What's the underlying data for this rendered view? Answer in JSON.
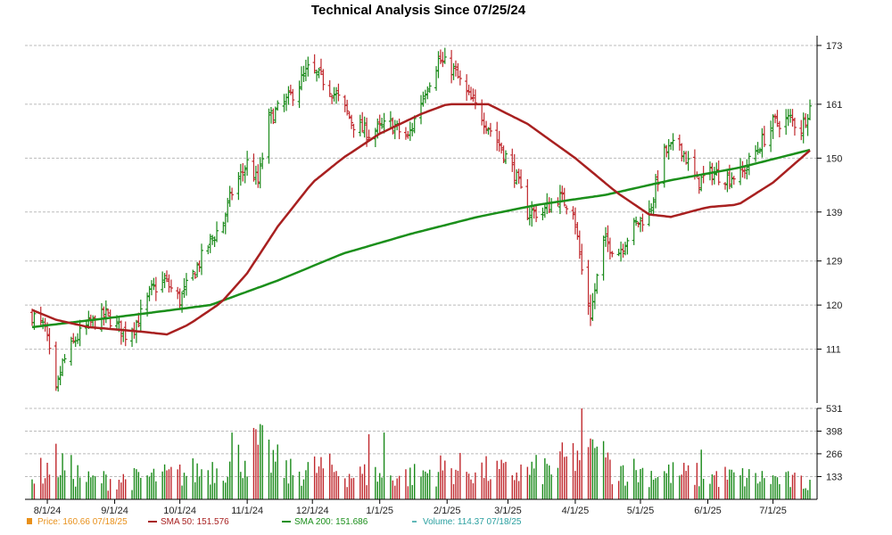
{
  "chart_data": [
    {
      "type": "ohlc",
      "title": "Technical Analysis Since 07/25/24",
      "yticks": [
        111,
        120,
        129,
        139,
        150,
        161,
        173
      ],
      "ylim": [
        100,
        175
      ],
      "grid": true,
      "xticks": [
        {
          "label": "8/1/24",
          "date": "2024-08-01"
        },
        {
          "label": "9/1/24",
          "date": "2024-09-01"
        },
        {
          "label": "10/1/24",
          "date": "2024-10-01"
        },
        {
          "label": "11/1/24",
          "date": "2024-11-01"
        },
        {
          "label": "12/1/24",
          "date": "2024-12-01"
        },
        {
          "label": "1/1/25",
          "date": "2025-01-01"
        },
        {
          "label": "2/1/25",
          "date": "2025-02-01"
        },
        {
          "label": "3/1/25",
          "date": "2025-03-01"
        },
        {
          "label": "4/1/25",
          "date": "2025-04-01"
        },
        {
          "label": "5/1/25",
          "date": "2025-05-01"
        },
        {
          "label": "6/1/25",
          "date": "2025-06-01"
        },
        {
          "label": "7/1/25",
          "date": "2025-07-01"
        }
      ],
      "xrange": [
        "2024-07-25",
        "2025-07-18"
      ],
      "price_keypoints": [
        [
          "2024-07-25",
          118
        ],
        [
          "2024-07-31",
          115
        ],
        [
          "2024-08-05",
          102
        ],
        [
          "2024-08-08",
          108
        ],
        [
          "2024-08-14",
          113
        ],
        [
          "2024-08-20",
          116
        ],
        [
          "2024-08-28",
          118
        ],
        [
          "2024-09-06",
          114
        ],
        [
          "2024-09-12",
          117
        ],
        [
          "2024-09-18",
          123
        ],
        [
          "2024-09-24",
          125
        ],
        [
          "2024-10-01",
          121
        ],
        [
          "2024-10-08",
          127
        ],
        [
          "2024-10-15",
          133
        ],
        [
          "2024-10-21",
          137
        ],
        [
          "2024-10-25",
          143
        ],
        [
          "2024-11-01",
          149
        ],
        [
          "2024-11-06",
          145
        ],
        [
          "2024-11-11",
          158
        ],
        [
          "2024-11-20",
          162
        ],
        [
          "2024-11-29",
          168
        ],
        [
          "2024-12-06",
          166
        ],
        [
          "2024-12-13",
          162
        ],
        [
          "2024-12-20",
          157
        ],
        [
          "2024-12-27",
          155
        ],
        [
          "2025-01-06",
          157
        ],
        [
          "2025-01-14",
          154
        ],
        [
          "2025-01-21",
          163
        ],
        [
          "2025-01-28",
          170
        ],
        [
          "2025-02-04",
          168
        ],
        [
          "2025-02-10",
          163
        ],
        [
          "2025-02-18",
          158
        ],
        [
          "2025-02-26",
          152
        ],
        [
          "2025-03-04",
          147
        ],
        [
          "2025-03-10",
          139
        ],
        [
          "2025-03-17",
          139
        ],
        [
          "2025-03-24",
          142
        ],
        [
          "2025-03-31",
          140
        ],
        [
          "2025-04-04",
          127
        ],
        [
          "2025-04-08",
          118
        ],
        [
          "2025-04-14",
          133
        ],
        [
          "2025-04-21",
          131
        ],
        [
          "2025-04-28",
          136
        ],
        [
          "2025-05-05",
          139
        ],
        [
          "2025-05-12",
          151
        ],
        [
          "2025-05-19",
          153
        ],
        [
          "2025-05-27",
          145
        ],
        [
          "2025-06-03",
          147
        ],
        [
          "2025-06-10",
          146
        ],
        [
          "2025-06-17",
          147
        ],
        [
          "2025-06-24",
          152
        ],
        [
          "2025-07-01",
          157
        ],
        [
          "2025-07-09",
          158
        ],
        [
          "2025-07-14",
          156
        ],
        [
          "2025-07-18",
          160.66
        ]
      ],
      "sma50_keypoints": [
        [
          "2024-07-25",
          119
        ],
        [
          "2024-08-05",
          117
        ],
        [
          "2024-08-20",
          115.5
        ],
        [
          "2024-09-15",
          114.5
        ],
        [
          "2024-09-25",
          114
        ],
        [
          "2024-10-05",
          116
        ],
        [
          "2024-10-20",
          120.5
        ],
        [
          "2024-11-01",
          126.5
        ],
        [
          "2024-11-15",
          136
        ],
        [
          "2024-12-01",
          145
        ],
        [
          "2024-12-15",
          150
        ],
        [
          "2025-01-01",
          155
        ],
        [
          "2025-01-20",
          159
        ],
        [
          "2025-02-01",
          161
        ],
        [
          "2025-02-20",
          161
        ],
        [
          "2025-03-10",
          157
        ],
        [
          "2025-04-01",
          150
        ],
        [
          "2025-04-20",
          143
        ],
        [
          "2025-05-05",
          138.5
        ],
        [
          "2025-05-15",
          138
        ],
        [
          "2025-06-01",
          140
        ],
        [
          "2025-06-15",
          140.5
        ],
        [
          "2025-07-01",
          145
        ],
        [
          "2025-07-18",
          151.576
        ]
      ],
      "sma200_keypoints": [
        [
          "2024-07-25",
          115.5
        ],
        [
          "2024-09-01",
          117.5
        ],
        [
          "2024-10-15",
          120
        ],
        [
          "2024-11-15",
          125
        ],
        [
          "2024-12-15",
          130.5
        ],
        [
          "2025-01-15",
          134.5
        ],
        [
          "2025-02-15",
          138
        ],
        [
          "2025-03-15",
          140.5
        ],
        [
          "2025-04-15",
          142.5
        ],
        [
          "2025-05-15",
          145.5
        ],
        [
          "2025-06-15",
          148
        ],
        [
          "2025-07-18",
          151.686
        ]
      ],
      "colors": {
        "up": "#1a8a1a",
        "down": "#c0282d",
        "sma50": "#a82020",
        "sma200": "#1b8f1b",
        "grid": "#bbbbbb"
      }
    },
    {
      "type": "bar",
      "series_name": "Volume",
      "yticks": [
        133,
        266,
        398,
        531
      ],
      "ylim": [
        0,
        531
      ],
      "volume_keypoints": [
        [
          "2024-07-25",
          160
        ],
        [
          "2024-08-05",
          270
        ],
        [
          "2024-08-20",
          140
        ],
        [
          "2024-09-10",
          150
        ],
        [
          "2024-10-01",
          180
        ],
        [
          "2024-10-25",
          260
        ],
        [
          "2024-11-06",
          380
        ],
        [
          "2024-11-20",
          190
        ],
        [
          "2024-12-05",
          230
        ],
        [
          "2024-12-20",
          180
        ],
        [
          "2025-01-15",
          170
        ],
        [
          "2025-02-01",
          230
        ],
        [
          "2025-03-01",
          190
        ],
        [
          "2025-03-20",
          220
        ],
        [
          "2025-04-04",
          340
        ],
        [
          "2025-04-15",
          250
        ],
        [
          "2025-05-01",
          200
        ],
        [
          "2025-06-01",
          170
        ],
        [
          "2025-07-01",
          150
        ],
        [
          "2025-07-18",
          114.37
        ]
      ],
      "volume_spikes": [
        [
          "2024-10-25",
          390
        ],
        [
          "2024-12-27",
          380
        ],
        [
          "2025-01-03",
          390
        ],
        [
          "2025-04-04",
          531
        ],
        [
          "2025-04-09",
          350
        ],
        [
          "2025-04-14",
          340
        ],
        [
          "2025-05-29",
          290
        ]
      ]
    }
  ],
  "legend": [
    {
      "label": "Price: 160.66  07/18/25",
      "color": "#e8901a",
      "marker": "square"
    },
    {
      "label": "SMA 50: 151.576",
      "color": "#a82020",
      "marker": "line"
    },
    {
      "label": "SMA 200: 151.686",
      "color": "#1b8f1b",
      "marker": "line"
    },
    {
      "label": "Volume: 114.37  07/18/25",
      "color": "#2aa0a0",
      "marker": "dash"
    }
  ]
}
